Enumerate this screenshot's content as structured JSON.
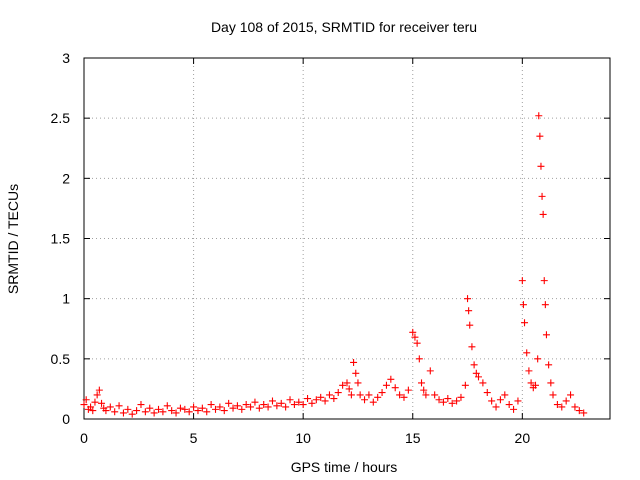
{
  "chart_data": {
    "type": "scatter",
    "title": "Day 108 of 2015, SRMTID for receiver teru",
    "xlabel": "GPS time / hours",
    "ylabel": "SRMTID / TECUs",
    "xlim": [
      0,
      24
    ],
    "ylim": [
      0,
      3
    ],
    "xticks": [
      0,
      5,
      10,
      15,
      20
    ],
    "xtick_labels": [
      "0",
      "5",
      "10",
      "15",
      "20"
    ],
    "yticks": [
      0,
      0.5,
      1,
      1.5,
      2,
      2.5,
      3
    ],
    "ytick_labels": [
      "0",
      "0.5",
      "1",
      "1.5",
      "2",
      "2.5",
      "3"
    ],
    "grid": true,
    "marker": "+",
    "marker_color": "#ff0000",
    "series": [
      {
        "name": "SRMTID",
        "points": [
          [
            0.0,
            0.12
          ],
          [
            0.1,
            0.16
          ],
          [
            0.2,
            0.08
          ],
          [
            0.3,
            0.1
          ],
          [
            0.4,
            0.07
          ],
          [
            0.5,
            0.14
          ],
          [
            0.6,
            0.2
          ],
          [
            0.7,
            0.24
          ],
          [
            0.8,
            0.13
          ],
          [
            0.9,
            0.09
          ],
          [
            1.0,
            0.07
          ],
          [
            1.2,
            0.1
          ],
          [
            1.4,
            0.06
          ],
          [
            1.6,
            0.11
          ],
          [
            1.8,
            0.05
          ],
          [
            2.0,
            0.08
          ],
          [
            2.2,
            0.04
          ],
          [
            2.4,
            0.07
          ],
          [
            2.6,
            0.12
          ],
          [
            2.8,
            0.06
          ],
          [
            3.0,
            0.09
          ],
          [
            3.2,
            0.05
          ],
          [
            3.4,
            0.08
          ],
          [
            3.6,
            0.06
          ],
          [
            3.8,
            0.11
          ],
          [
            4.0,
            0.07
          ],
          [
            4.2,
            0.05
          ],
          [
            4.4,
            0.09
          ],
          [
            4.6,
            0.08
          ],
          [
            4.8,
            0.06
          ],
          [
            5.0,
            0.1
          ],
          [
            5.2,
            0.07
          ],
          [
            5.4,
            0.09
          ],
          [
            5.6,
            0.06
          ],
          [
            5.8,
            0.12
          ],
          [
            6.0,
            0.08
          ],
          [
            6.2,
            0.1
          ],
          [
            6.4,
            0.07
          ],
          [
            6.6,
            0.13
          ],
          [
            6.8,
            0.09
          ],
          [
            7.0,
            0.11
          ],
          [
            7.2,
            0.08
          ],
          [
            7.4,
            0.12
          ],
          [
            7.6,
            0.1
          ],
          [
            7.8,
            0.14
          ],
          [
            8.0,
            0.09
          ],
          [
            8.2,
            0.12
          ],
          [
            8.4,
            0.1
          ],
          [
            8.6,
            0.15
          ],
          [
            8.8,
            0.11
          ],
          [
            9.0,
            0.13
          ],
          [
            9.2,
            0.1
          ],
          [
            9.4,
            0.16
          ],
          [
            9.6,
            0.12
          ],
          [
            9.8,
            0.14
          ],
          [
            10.0,
            0.12
          ],
          [
            10.2,
            0.17
          ],
          [
            10.4,
            0.13
          ],
          [
            10.6,
            0.16
          ],
          [
            10.8,
            0.18
          ],
          [
            11.0,
            0.15
          ],
          [
            11.2,
            0.2
          ],
          [
            11.4,
            0.17
          ],
          [
            11.6,
            0.22
          ],
          [
            11.8,
            0.28
          ],
          [
            12.0,
            0.3
          ],
          [
            12.1,
            0.25
          ],
          [
            12.2,
            0.2
          ],
          [
            12.3,
            0.47
          ],
          [
            12.4,
            0.38
          ],
          [
            12.5,
            0.3
          ],
          [
            12.6,
            0.2
          ],
          [
            12.8,
            0.16
          ],
          [
            13.0,
            0.2
          ],
          [
            13.2,
            0.14
          ],
          [
            13.4,
            0.18
          ],
          [
            13.6,
            0.22
          ],
          [
            13.8,
            0.28
          ],
          [
            14.0,
            0.33
          ],
          [
            14.2,
            0.26
          ],
          [
            14.4,
            0.2
          ],
          [
            14.6,
            0.18
          ],
          [
            14.8,
            0.24
          ],
          [
            15.0,
            0.72
          ],
          [
            15.1,
            0.68
          ],
          [
            15.2,
            0.63
          ],
          [
            15.3,
            0.5
          ],
          [
            15.4,
            0.3
          ],
          [
            15.5,
            0.24
          ],
          [
            15.6,
            0.2
          ],
          [
            15.8,
            0.4
          ],
          [
            16.0,
            0.2
          ],
          [
            16.2,
            0.16
          ],
          [
            16.4,
            0.14
          ],
          [
            16.6,
            0.17
          ],
          [
            16.8,
            0.13
          ],
          [
            17.0,
            0.15
          ],
          [
            17.2,
            0.18
          ],
          [
            17.4,
            0.28
          ],
          [
            17.5,
            1.0
          ],
          [
            17.55,
            0.9
          ],
          [
            17.6,
            0.78
          ],
          [
            17.7,
            0.6
          ],
          [
            17.8,
            0.45
          ],
          [
            17.9,
            0.38
          ],
          [
            18.0,
            0.35
          ],
          [
            18.2,
            0.3
          ],
          [
            18.4,
            0.22
          ],
          [
            18.6,
            0.15
          ],
          [
            18.8,
            0.1
          ],
          [
            19.0,
            0.16
          ],
          [
            19.2,
            0.2
          ],
          [
            19.4,
            0.12
          ],
          [
            19.6,
            0.08
          ],
          [
            19.8,
            0.15
          ],
          [
            20.0,
            1.15
          ],
          [
            20.05,
            0.95
          ],
          [
            20.1,
            0.8
          ],
          [
            20.2,
            0.55
          ],
          [
            20.3,
            0.4
          ],
          [
            20.4,
            0.3
          ],
          [
            20.5,
            0.26
          ],
          [
            20.6,
            0.28
          ],
          [
            20.7,
            0.5
          ],
          [
            20.75,
            2.52
          ],
          [
            20.8,
            2.35
          ],
          [
            20.85,
            2.1
          ],
          [
            20.9,
            1.85
          ],
          [
            20.95,
            1.7
          ],
          [
            21.0,
            1.15
          ],
          [
            21.05,
            0.95
          ],
          [
            21.1,
            0.7
          ],
          [
            21.2,
            0.45
          ],
          [
            21.3,
            0.3
          ],
          [
            21.4,
            0.2
          ],
          [
            21.6,
            0.12
          ],
          [
            21.8,
            0.1
          ],
          [
            22.0,
            0.15
          ],
          [
            22.2,
            0.2
          ],
          [
            22.4,
            0.1
          ],
          [
            22.6,
            0.07
          ],
          [
            22.8,
            0.05
          ]
        ]
      }
    ]
  }
}
